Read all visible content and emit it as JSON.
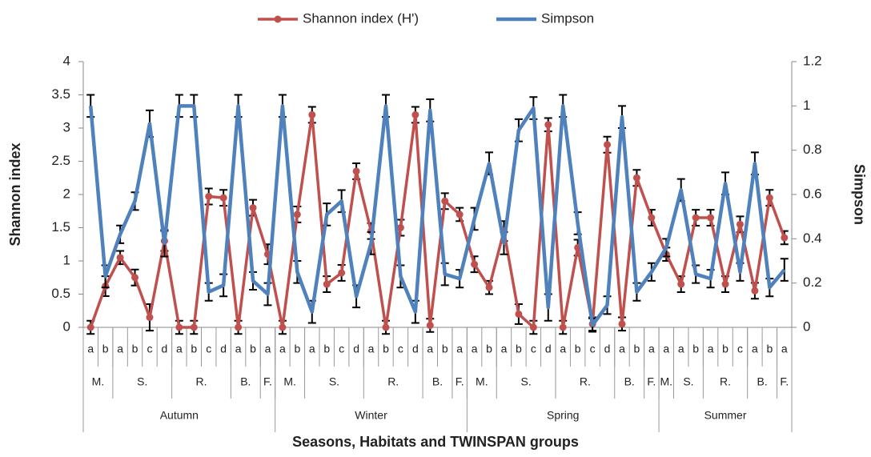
{
  "chart_data": {
    "type": "line",
    "ylabel": "Shannon index",
    "y2label": "Simpson",
    "xlabel": "Seasons, Habitats and TWINSPAN groups",
    "categories": [
      "a",
      "b",
      "a",
      "b",
      "c",
      "d",
      "a",
      "b",
      "c",
      "d",
      "a",
      "b",
      "a",
      "a",
      "b",
      "a",
      "b",
      "c",
      "d",
      "a",
      "b",
      "c",
      "d",
      "a",
      "b",
      "a",
      "a",
      "b",
      "a",
      "b",
      "c",
      "d",
      "a",
      "b",
      "c",
      "d",
      "a",
      "b",
      "a",
      "a",
      "a",
      "b",
      "a",
      "b",
      "c",
      "a",
      "b",
      "a"
    ],
    "habitats": [
      "M.",
      null,
      "S.",
      null,
      null,
      null,
      "R.",
      null,
      null,
      null,
      "B.",
      null,
      "F.",
      "M.",
      null,
      "S.",
      null,
      null,
      null,
      "R.",
      null,
      null,
      null,
      "B.",
      null,
      "F.",
      "M.",
      null,
      "S.",
      null,
      null,
      null,
      "R.",
      null,
      null,
      null,
      "B.",
      null,
      "F.",
      "M.",
      "S.",
      null,
      "R.",
      null,
      null,
      "B.",
      null,
      "F."
    ],
    "seasons": [
      "Autumn",
      null,
      null,
      null,
      null,
      null,
      null,
      null,
      null,
      null,
      null,
      null,
      null,
      "Winter",
      null,
      null,
      null,
      null,
      null,
      null,
      null,
      null,
      null,
      null,
      null,
      null,
      "Spring",
      null,
      null,
      null,
      null,
      null,
      null,
      null,
      null,
      null,
      null,
      null,
      null,
      "Summer",
      null,
      null,
      null,
      null,
      null,
      null,
      null,
      null
    ],
    "ylim": [
      0,
      4
    ],
    "yticks": [
      0,
      0.5,
      1,
      1.5,
      2,
      2.5,
      3,
      3.5,
      4
    ],
    "y2lim": [
      0,
      1.2
    ],
    "y2ticks": [
      0,
      0.2,
      0.4,
      0.6,
      0.8,
      1,
      1.2
    ],
    "series": [
      {
        "name": "Shannon index (H')",
        "color": "#c0504d",
        "axis": "y",
        "values": [
          0,
          0.62,
          1.05,
          0.75,
          0.15,
          1.3,
          0,
          0,
          1.97,
          1.95,
          0,
          1.8,
          1.1,
          0,
          1.7,
          3.2,
          0.65,
          0.82,
          2.35,
          1.45,
          0,
          1.5,
          3.2,
          0.03,
          1.9,
          1.7,
          0.95,
          0.6,
          1.45,
          0.2,
          0,
          3.05,
          0,
          1.2,
          0.05,
          2.75,
          0.05,
          2.25,
          1.65,
          1.1,
          0.65,
          1.65,
          1.65,
          0.65,
          1.55,
          0.55,
          1.95,
          1.35
        ],
        "errors": [
          0.1,
          0.15,
          0.1,
          0.12,
          0.2,
          0.15,
          0.1,
          0.1,
          0.12,
          0.12,
          0.1,
          0.12,
          0.15,
          0.1,
          0.12,
          0.12,
          0.12,
          0.12,
          0.12,
          0.12,
          0.1,
          0.12,
          0.12,
          0.1,
          0.12,
          0.1,
          0.12,
          0.1,
          0.15,
          0.15,
          0.1,
          0.1,
          0.1,
          0.12,
          0.1,
          0.12,
          0.1,
          0.12,
          0.12,
          0.1,
          0.12,
          0.12,
          0.12,
          0.12,
          0.12,
          0.12,
          0.12,
          0.1
        ]
      },
      {
        "name": "Simpson",
        "color": "#4f81bd",
        "axis": "y2",
        "values": [
          1,
          0.23,
          0.42,
          0.57,
          0.92,
          0.38,
          1,
          1,
          0.16,
          0.19,
          1,
          0.21,
          0.15,
          1,
          0.25,
          0.07,
          0.51,
          0.57,
          0.14,
          0.38,
          1,
          0.23,
          0.07,
          0.98,
          0.24,
          0.22,
          0.49,
          0.74,
          0.38,
          0.89,
          0.99,
          0.09,
          1,
          0.47,
          0.01,
          0.1,
          0.95,
          0.16,
          0.25,
          0.36,
          0.62,
          0.24,
          0.22,
          0.65,
          0.25,
          0.74,
          0.18,
          0.26
        ],
        "errors": [
          0.05,
          0.05,
          0.04,
          0.04,
          0.06,
          0.06,
          0.05,
          0.05,
          0.04,
          0.05,
          0.05,
          0.04,
          0.05,
          0.05,
          0.05,
          0.05,
          0.05,
          0.05,
          0.05,
          0.05,
          0.05,
          0.05,
          0.05,
          0.05,
          0.05,
          0.04,
          0.05,
          0.05,
          0.05,
          0.05,
          0.05,
          0.06,
          0.05,
          0.05,
          0.03,
          0.04,
          0.05,
          0.04,
          0.04,
          0.04,
          0.05,
          0.04,
          0.04,
          0.05,
          0.04,
          0.05,
          0.04,
          0.05
        ]
      }
    ],
    "legend": "top"
  }
}
